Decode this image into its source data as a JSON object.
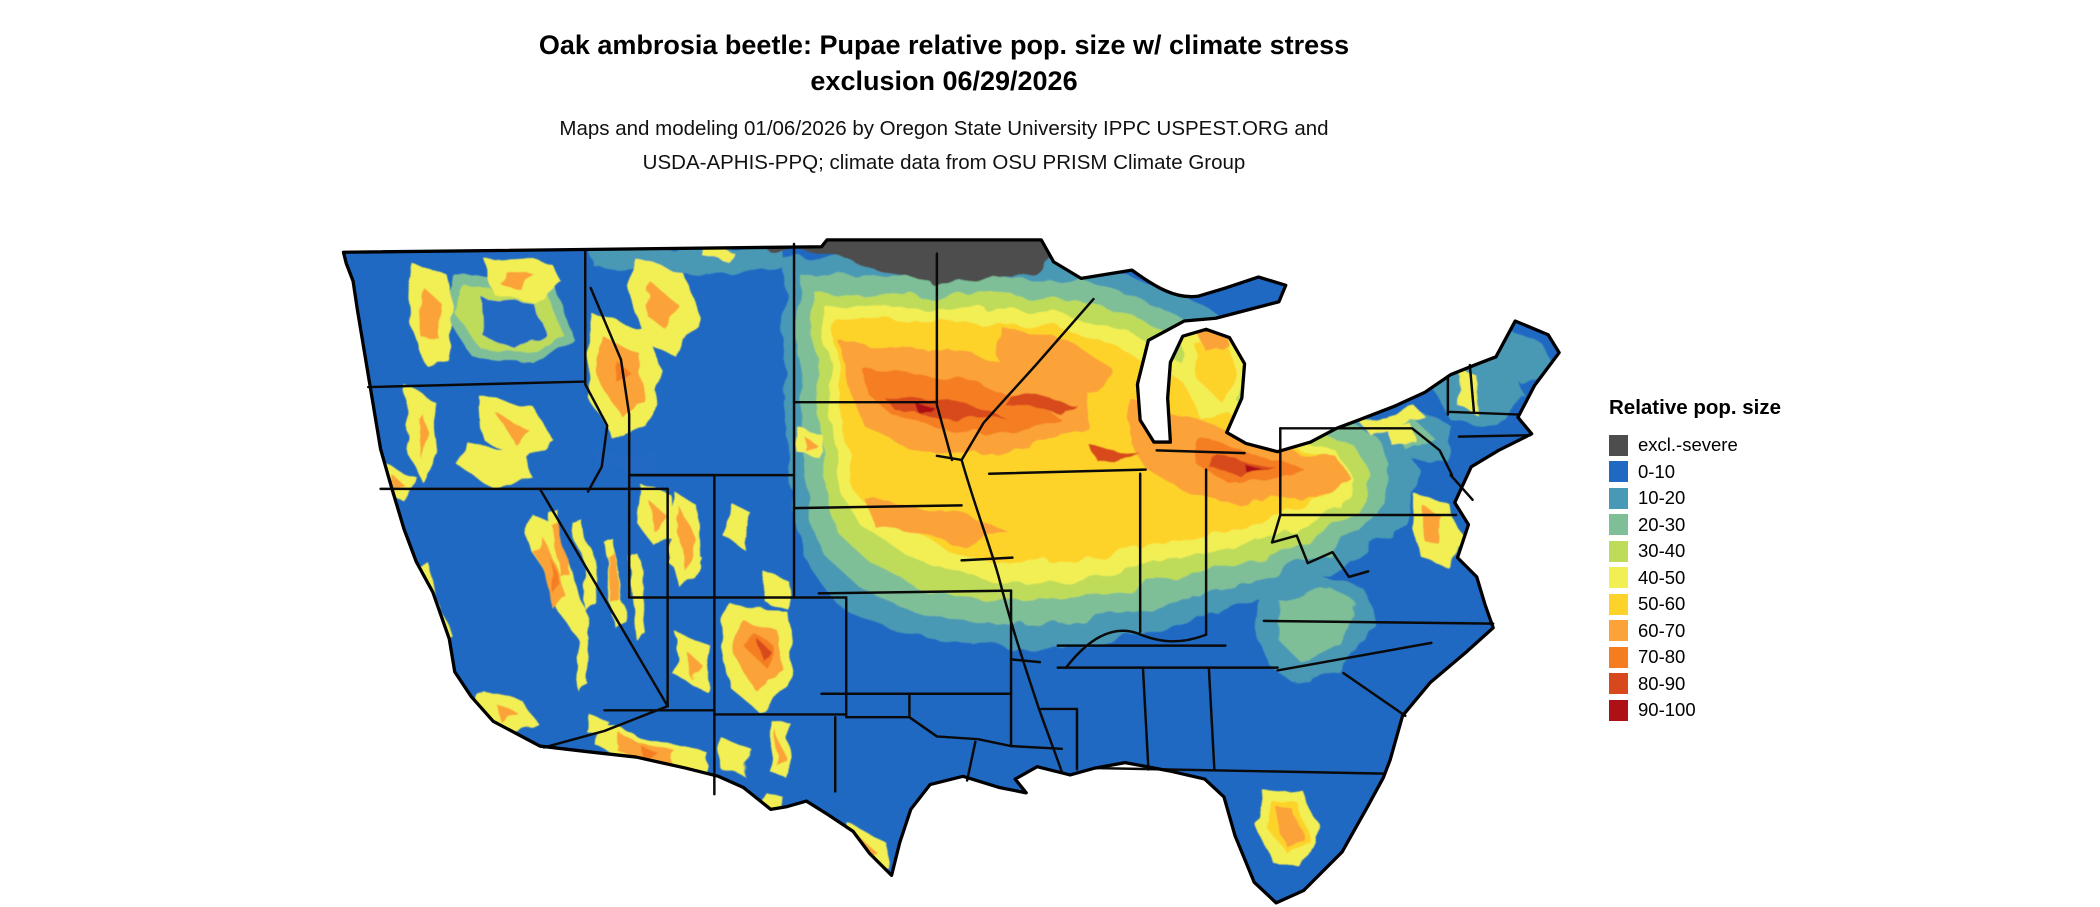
{
  "title_lines": [
    "Oak ambrosia beetle: Pupae relative pop. size w/ climate stress",
    "exclusion 06/29/2026"
  ],
  "subtitle_lines": [
    "Maps and modeling 01/06/2026 by Oregon State University IPPC USPEST.ORG and",
    "USDA-APHIS-PPQ; climate data from OSU PRISM Climate Group"
  ],
  "legend": {
    "title": "Relative pop. size",
    "items": [
      {
        "key": "excl",
        "label": "excl.-severe",
        "color": "#4d4d4d"
      },
      {
        "key": "c0",
        "label": "0-10",
        "color": "#2069c3"
      },
      {
        "key": "c10",
        "label": "10-20",
        "color": "#4899b5"
      },
      {
        "key": "c20",
        "label": "20-30",
        "color": "#7fbf97"
      },
      {
        "key": "c30",
        "label": "30-40",
        "color": "#bedc5a"
      },
      {
        "key": "c40",
        "label": "40-50",
        "color": "#f2ef55"
      },
      {
        "key": "c50",
        "label": "50-60",
        "color": "#fdd32b"
      },
      {
        "key": "c60",
        "label": "60-70",
        "color": "#fba238"
      },
      {
        "key": "c70",
        "label": "70-80",
        "color": "#f57d20"
      },
      {
        "key": "c80",
        "label": "80-90",
        "color": "#d8481d"
      },
      {
        "key": "c90",
        "label": "90-100",
        "color": "#ad1015"
      }
    ]
  }
}
